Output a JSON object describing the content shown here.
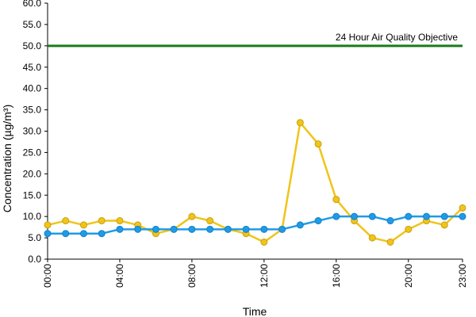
{
  "chart_data": {
    "type": "line",
    "title": "",
    "xlabel": "Time",
    "ylabel": "Concentration (µg/m³)",
    "ylim": [
      0,
      60
    ],
    "y_ticks": [
      "0.0",
      "5.0",
      "10.0",
      "15.0",
      "20.0",
      "25.0",
      "30.0",
      "35.0",
      "40.0",
      "45.0",
      "50.0",
      "55.0",
      "60.0"
    ],
    "x_ticks": [
      "00:00",
      "04:00",
      "08:00",
      "12:00",
      "16:00",
      "20:00",
      "23:00"
    ],
    "x": [
      "00:00",
      "01:00",
      "02:00",
      "03:00",
      "04:00",
      "05:00",
      "06:00",
      "07:00",
      "08:00",
      "09:00",
      "10:00",
      "11:00",
      "12:00",
      "13:00",
      "14:00",
      "15:00",
      "16:00",
      "17:00",
      "18:00",
      "19:00",
      "20:00",
      "21:00",
      "22:00",
      "23:00"
    ],
    "series": [
      {
        "color": "#F0C419",
        "values": [
          8,
          9,
          8,
          9,
          9,
          8,
          6,
          7,
          10,
          9,
          7,
          6,
          4,
          7,
          32,
          27,
          14,
          9,
          5,
          4,
          7,
          9,
          8,
          12
        ]
      },
      {
        "color": "#1E9BE8",
        "values": [
          6,
          6,
          6,
          6,
          7,
          7,
          7,
          7,
          7,
          7,
          7,
          7,
          7,
          7,
          8,
          9,
          10,
          10,
          10,
          9,
          10,
          10,
          10,
          10
        ]
      }
    ],
    "reference_line": {
      "label": "24 Hour Air Quality Objective",
      "value": 50,
      "color": "#1A7A1A"
    },
    "grid": false,
    "legend": "none"
  }
}
